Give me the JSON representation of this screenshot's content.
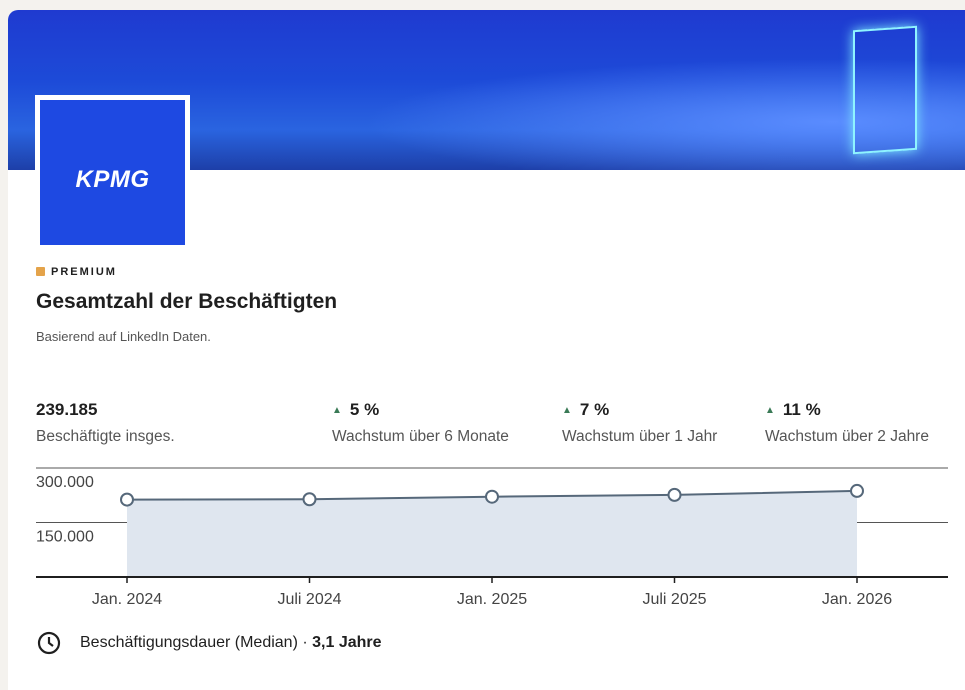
{
  "header": {
    "logo": "KPMG",
    "badge": "PREMIUM",
    "title": "Gesamtzahl der Beschäftigten",
    "subtitle": "Basierend auf LinkedIn Daten."
  },
  "stats": [
    {
      "value": "239.185",
      "label": "Beschäftigte insges."
    },
    {
      "value": "5 %",
      "label": "Wachstum über 6 Monate"
    },
    {
      "value": "7 %",
      "label": "Wachstum über 1 Jahr"
    },
    {
      "value": "11 %",
      "label": "Wachstum über 2 Jahre"
    }
  ],
  "chart_data": {
    "type": "area",
    "x": [
      "Jan. 2024",
      "Juli 2024",
      "Jan. 2025",
      "Juli 2025",
      "Jan. 2026"
    ],
    "series": [
      {
        "color": "#56687a",
        "values": [
          213000,
          214000,
          221000,
          226000,
          237000
        ]
      }
    ],
    "ylim": [
      0,
      300000
    ],
    "yticks": [
      {
        "value": 150000,
        "label": "150.000"
      },
      {
        "value": 300000,
        "label": "300.000"
      }
    ],
    "grid": true
  },
  "footer": {
    "label": "Beschäftigungsdauer (Median) · ",
    "value": "3,1 Jahre"
  }
}
